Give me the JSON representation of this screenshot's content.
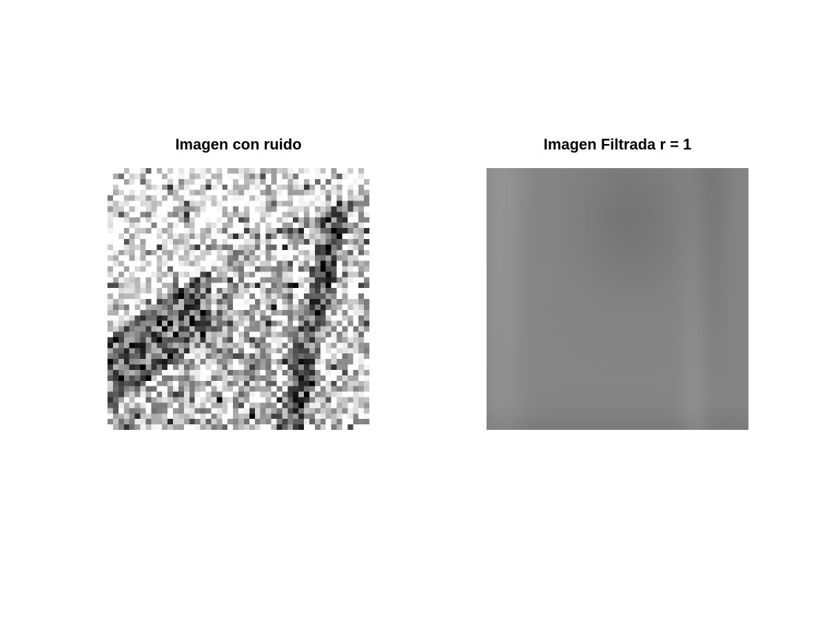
{
  "figure": {
    "panels": [
      {
        "title": "Imagen con ruido",
        "image_kind": "noisy-grayscale",
        "grid": 48
      },
      {
        "title": "Imagen Filtrada r = 1",
        "image_kind": "filtered-grayscale",
        "grid": 48
      }
    ]
  },
  "colors": {
    "background": "#ffffff",
    "title": "#000000"
  }
}
